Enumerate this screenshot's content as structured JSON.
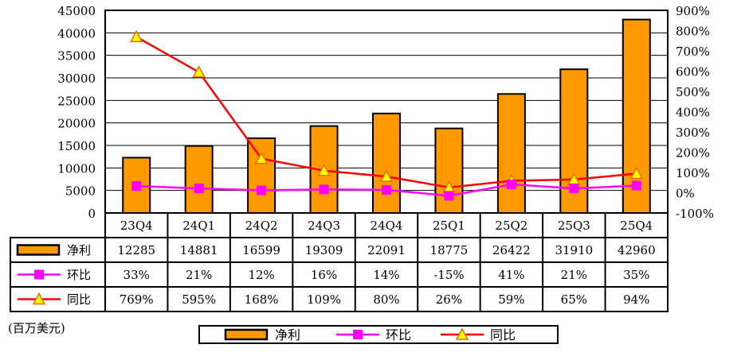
{
  "chart_data": {
    "type": "bar",
    "categories": [
      "23Q4",
      "24Q1",
      "24Q2",
      "24Q3",
      "24Q4",
      "25Q1",
      "25Q2",
      "25Q3",
      "25Q4"
    ],
    "series": [
      {
        "name": "净利",
        "kind": "bar",
        "axis": "left",
        "values": [
          12285,
          14881,
          16599,
          19309,
          22091,
          18775,
          26422,
          31910,
          42960
        ],
        "labels": [
          "12285",
          "14881",
          "16599",
          "19309",
          "22091",
          "18775",
          "26422",
          "31910",
          "42960"
        ]
      },
      {
        "name": "环比",
        "kind": "line",
        "axis": "right",
        "values": [
          33,
          21,
          12,
          16,
          14,
          -15,
          41,
          21,
          35
        ],
        "labels": [
          "33%",
          "21%",
          "12%",
          "16%",
          "14%",
          "-15%",
          "41%",
          "21%",
          "35%"
        ]
      },
      {
        "name": "同比",
        "kind": "line",
        "axis": "right",
        "values": [
          769,
          595,
          168,
          109,
          80,
          26,
          59,
          65,
          94
        ],
        "labels": [
          "769%",
          "595%",
          "168%",
          "109%",
          "80%",
          "26%",
          "59%",
          "65%",
          "94%"
        ]
      }
    ],
    "ylim_left": [
      0,
      45000
    ],
    "yticks_left": [
      "0",
      "5000",
      "10000",
      "15000",
      "20000",
      "25000",
      "30000",
      "35000",
      "40000",
      "45000"
    ],
    "ylim_right": [
      -100,
      900
    ],
    "yticks_right": [
      "-100%",
      "0%",
      "100%",
      "200%",
      "300%",
      "400%",
      "500%",
      "600%",
      "700%",
      "800%",
      "900%"
    ],
    "grid": true,
    "legend_placement": "bottom",
    "unit_note": "(百万美元)",
    "colors": {
      "bar": "#FF9900",
      "qoq": "#FF00FF",
      "yoy": "#FF0000",
      "marker_yoy": "#FFFF00"
    }
  }
}
